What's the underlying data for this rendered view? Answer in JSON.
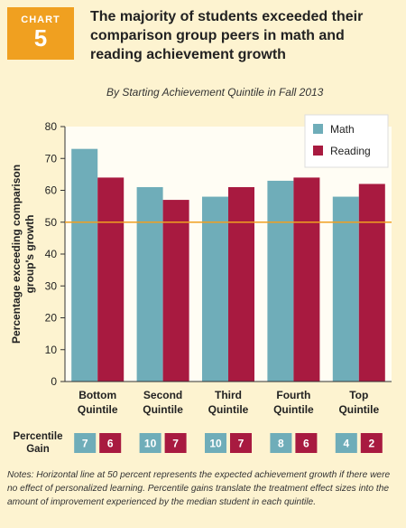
{
  "badge": {
    "label": "CHART",
    "number": "5"
  },
  "title": "The majority of students exceeded their comparison group peers in math and reading achievement growth",
  "subtitle": "By Starting Achievement Quintile in Fall 2013",
  "chart_data": {
    "type": "bar",
    "categories": [
      [
        "Bottom",
        "Quintile"
      ],
      [
        "Second",
        "Quintile"
      ],
      [
        "Third",
        "Quintile"
      ],
      [
        "Fourth",
        "Quintile"
      ],
      [
        "Top",
        "Quintile"
      ]
    ],
    "series": [
      {
        "name": "Math",
        "color": "#6fadb9",
        "values": [
          73,
          61,
          58,
          63,
          58
        ]
      },
      {
        "name": "Reading",
        "color": "#a81a40",
        "values": [
          64,
          57,
          61,
          64,
          62
        ]
      }
    ],
    "ylabel": [
      "Percentage exceeding comparison",
      "group's growth"
    ],
    "ylim": [
      0,
      80
    ],
    "yticks": [
      0,
      10,
      20,
      30,
      40,
      50,
      60,
      70,
      80
    ],
    "reference_line": {
      "value": 50,
      "color": "#f0a020"
    },
    "legend_position": "top-right",
    "grid": false
  },
  "percentile_gain": {
    "label": [
      "Percentile",
      "Gain"
    ],
    "math": [
      7,
      10,
      10,
      8,
      4
    ],
    "reading": [
      6,
      7,
      7,
      6,
      2
    ]
  },
  "notes": "Notes: Horizontal line at 50 percent represents the expected achievement growth if there were no effect of personalized learning. Percentile gains translate the treatment effect sizes into the amount of improvement experienced by the median student in each quintile."
}
